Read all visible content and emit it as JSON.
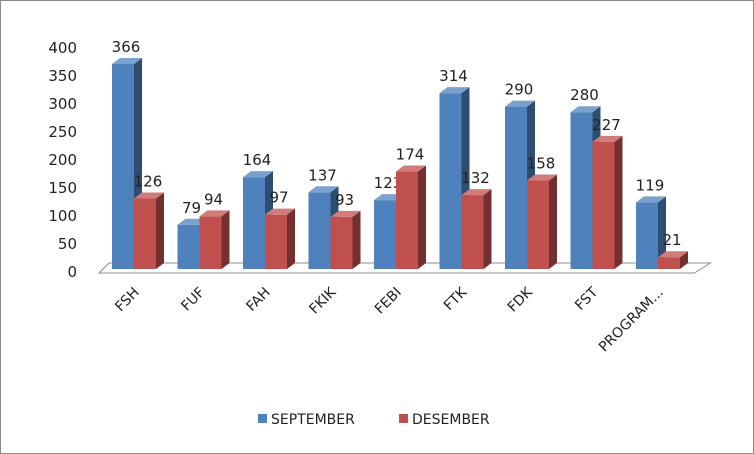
{
  "chart_data": {
    "type": "bar",
    "title": "",
    "xlabel": "",
    "ylabel": "",
    "categories": [
      "FSH",
      "FUF",
      "FAH",
      "FKIK",
      "FEBI",
      "FTK",
      "FDK",
      "FST",
      "PROGRAM..."
    ],
    "series": [
      {
        "name": "SEPTEMBER",
        "color": "#4F81BD",
        "values": [
          366,
          79,
          164,
          137,
          123,
          314,
          290,
          280,
          119
        ]
      },
      {
        "name": "DESEMBER",
        "color": "#C0504D",
        "values": [
          126,
          94,
          97,
          93,
          174,
          132,
          158,
          227,
          21
        ]
      }
    ],
    "ylim": [
      0,
      400
    ],
    "yticks": [
      "0",
      "50",
      "100",
      "150",
      "200",
      "250",
      "300",
      "350",
      "400"
    ],
    "grid": false,
    "legend": "bottom",
    "style": "3d-clustered-column"
  }
}
